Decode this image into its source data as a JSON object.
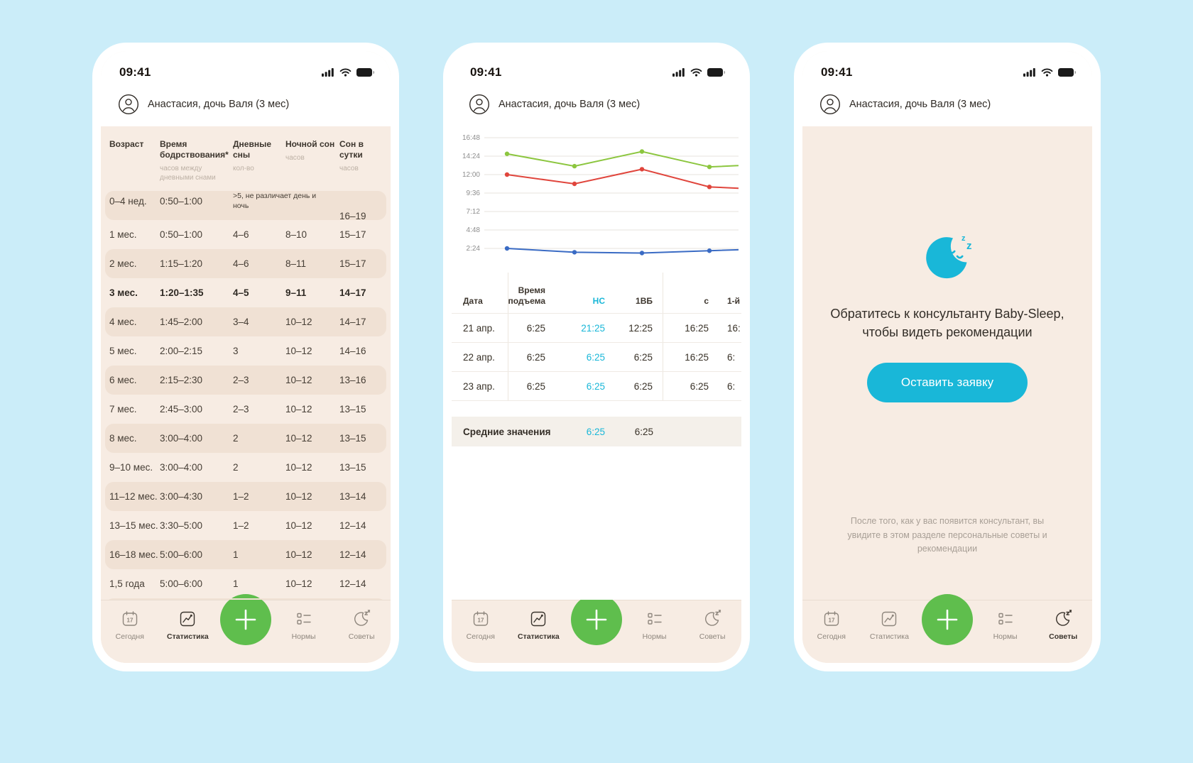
{
  "colors": {
    "bg_blue": "#cbedf9",
    "beige": "#f7ece3",
    "beige_dark": "#f0e1d4",
    "accent_green": "#5fbe4d",
    "accent_teal": "#19b7d8",
    "text_muted": "#bdb1a5"
  },
  "status": {
    "time": "09:41"
  },
  "profile": {
    "name": "Анастасия, дочь Валя (3 мес)"
  },
  "tabbar": {
    "today": "Сегодня",
    "stats": "Статистика",
    "norms": "Нормы",
    "advice": "Советы",
    "calendar_day": "17"
  },
  "norms": {
    "columns": [
      {
        "title": "Возраст",
        "subtitle": ""
      },
      {
        "title": "Время бодрствования*",
        "subtitle": "часов между дневными снами"
      },
      {
        "title": "Дневные сны",
        "subtitle": "кол-во"
      },
      {
        "title": "Ночной сон",
        "subtitle": "часов"
      },
      {
        "title": "Сон в сутки",
        "subtitle": "часов"
      }
    ],
    "rows": [
      {
        "age": "0–4 нед.",
        "wake": "0:50–1:00",
        "naps": ">5, не различает день и ночь",
        "night": "",
        "total": "16–19",
        "note": true
      },
      {
        "age": "1 мес.",
        "wake": "0:50–1:00",
        "naps": "4–6",
        "night": "8–10",
        "total": "15–17"
      },
      {
        "age": "2 мес.",
        "wake": "1:15–1:20",
        "naps": "4–6",
        "night": "8–11",
        "total": "15–17"
      },
      {
        "age": "3 мес.",
        "wake": "1:20–1:35",
        "naps": "4–5",
        "night": "9–11",
        "total": "14–17",
        "bold": true
      },
      {
        "age": "4 мес.",
        "wake": "1:45–2:00",
        "naps": "3–4",
        "night": "10–12",
        "total": "14–17"
      },
      {
        "age": "5 мес.",
        "wake": "2:00–2:15",
        "naps": "3",
        "night": "10–12",
        "total": "14–16"
      },
      {
        "age": "6 мес.",
        "wake": "2:15–2:30",
        "naps": "2–3",
        "night": "10–12",
        "total": "13–16"
      },
      {
        "age": "7 мес.",
        "wake": "2:45–3:00",
        "naps": "2–3",
        "night": "10–12",
        "total": "13–15"
      },
      {
        "age": "8 мес.",
        "wake": "3:00–4:00",
        "naps": "2",
        "night": "10–12",
        "total": "13–15"
      },
      {
        "age": "9–10 мес.",
        "wake": "3:00–4:00",
        "naps": "2",
        "night": "10–12",
        "total": "13–15"
      },
      {
        "age": "11–12 мес.",
        "wake": "3:00–4:30",
        "naps": "1–2",
        "night": "10–12",
        "total": "13–14"
      },
      {
        "age": "13–15 мес.",
        "wake": "3:30–5:00",
        "naps": "1–2",
        "night": "10–12",
        "total": "12–14"
      },
      {
        "age": "16–18 мес.",
        "wake": "5:00–6:00",
        "naps": "1",
        "night": "10–12",
        "total": "12–14"
      },
      {
        "age": "1,5 года",
        "wake": "5:00–6:00",
        "naps": "1",
        "night": "10–12",
        "total": "12–14"
      }
    ]
  },
  "stats": {
    "chart_data": {
      "type": "line",
      "y_ticks": [
        "16:48",
        "14:24",
        "12:00",
        "9:36",
        "7:12",
        "4:48",
        "2:24"
      ],
      "y_tick_hours": [
        16.8,
        14.4,
        12.0,
        9.6,
        7.2,
        4.8,
        2.4
      ],
      "series": [
        {
          "name": "series-green",
          "color": "#8cc63f",
          "values_hours": [
            14.7,
            13.1,
            15.0,
            13.0,
            13.4
          ]
        },
        {
          "name": "series-red",
          "color": "#e0453c",
          "values_hours": [
            12.0,
            10.8,
            12.7,
            10.4,
            10.0
          ]
        },
        {
          "name": "series-blue",
          "color": "#3a6bc4",
          "values_hours": [
            2.4,
            1.9,
            1.8,
            2.1,
            2.4
          ]
        }
      ]
    },
    "table": {
      "headers": [
        "Дата",
        "Время подъема",
        "НС",
        "1ВБ",
        "с",
        "1-й"
      ],
      "rows": [
        {
          "date": "21 апр.",
          "rise": "6:25",
          "ns": "21:25",
          "vb": "12:25",
          "c": "16:25",
          "last": "16:"
        },
        {
          "date": "22 апр.",
          "rise": "6:25",
          "ns": "6:25",
          "vb": "6:25",
          "c": "16:25",
          "last": "6:"
        },
        {
          "date": "23 апр.",
          "rise": "6:25",
          "ns": "6:25",
          "vb": "6:25",
          "c": "6:25",
          "last": "6:"
        }
      ],
      "avg": {
        "label": "Средние значения",
        "ns": "6:25",
        "vb": "6:25"
      }
    }
  },
  "advice": {
    "title": "Обратитесь к консультанту Baby-Sleep, чтобы видеть рекомендации",
    "button_label": "Оставить заявку",
    "note": "После того, как у вас появится консультант, вы увидите в этом разделе персональные советы и рекомендации"
  }
}
